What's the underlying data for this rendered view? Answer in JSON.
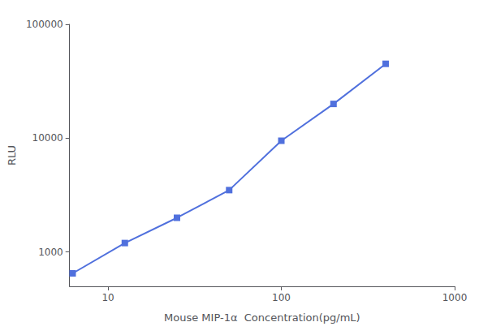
{
  "chart_data": {
    "type": "line",
    "x": [
      6.25,
      12.5,
      25,
      50,
      100,
      200,
      400
    ],
    "values": [
      650,
      1200,
      2000,
      3500,
      9500,
      20000,
      45000
    ],
    "xlabel": "Mouse MIP-1α  Concentration(pg/mL)",
    "ylabel": "RLU",
    "xlim": [
      6,
      1000
    ],
    "ylim": [
      500,
      100000
    ],
    "xticks": [
      10,
      100,
      1000
    ],
    "yticks": [
      1000,
      10000,
      100000
    ],
    "log": true,
    "grid": false,
    "marker": "square"
  }
}
